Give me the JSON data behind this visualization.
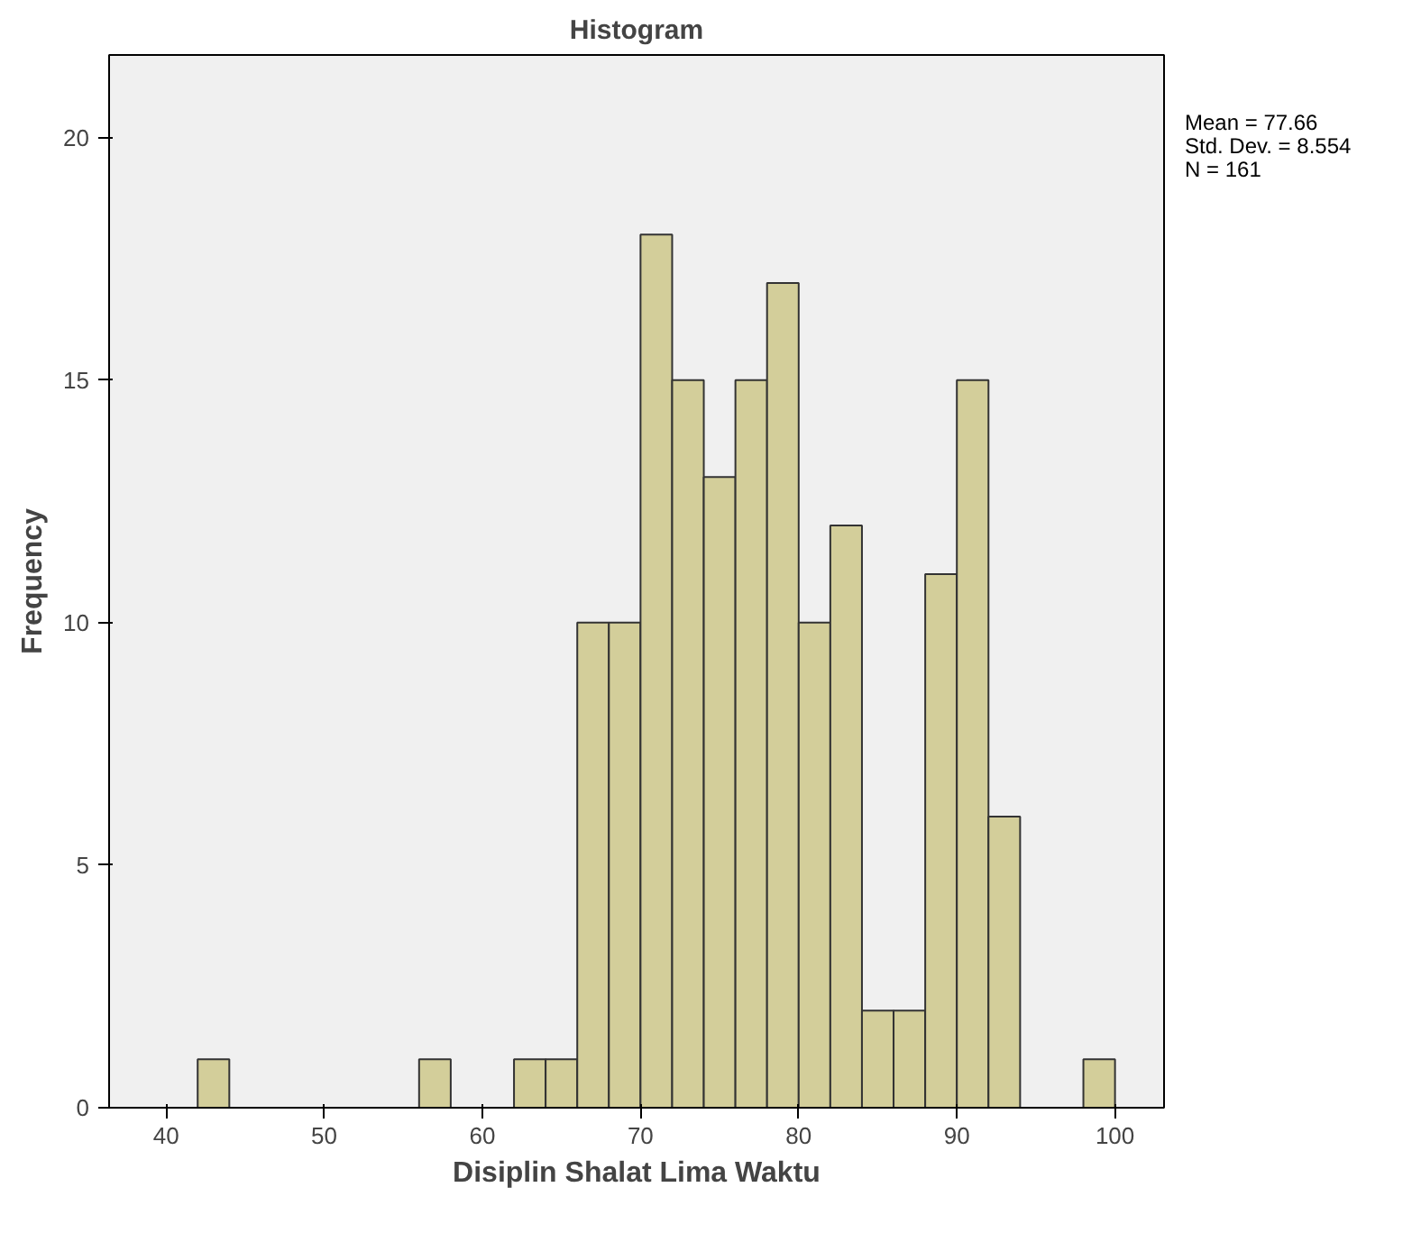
{
  "chart_data": {
    "type": "histogram",
    "title": "Histogram",
    "xlabel": "Disiplin Shalat Lima Waktu",
    "ylabel": "Frequency",
    "bins": [
      42,
      44,
      46,
      48,
      50,
      52,
      54,
      56,
      58,
      60,
      62,
      64,
      66,
      68,
      70,
      72,
      74,
      76,
      78,
      80,
      82,
      84,
      86,
      88,
      90,
      92,
      94,
      96,
      98,
      100
    ],
    "values": [
      1,
      0,
      0,
      0,
      0,
      0,
      0,
      1,
      0,
      0,
      1,
      1,
      10,
      10,
      18,
      15,
      13,
      15,
      17,
      10,
      12,
      2,
      2,
      11,
      15,
      6,
      0,
      0,
      1
    ],
    "color": "#d3ce9a",
    "xlim": [
      36.4,
      103.1
    ],
    "ylim": [
      0,
      21.7
    ],
    "xticks": [
      40,
      50,
      60,
      70,
      80,
      90,
      100
    ],
    "yticks": [
      0,
      5,
      10,
      15,
      20
    ],
    "grid": false,
    "annotations": [
      "Mean = 77.66",
      "Std. Dev. = 8.554",
      "N = 161"
    ]
  }
}
